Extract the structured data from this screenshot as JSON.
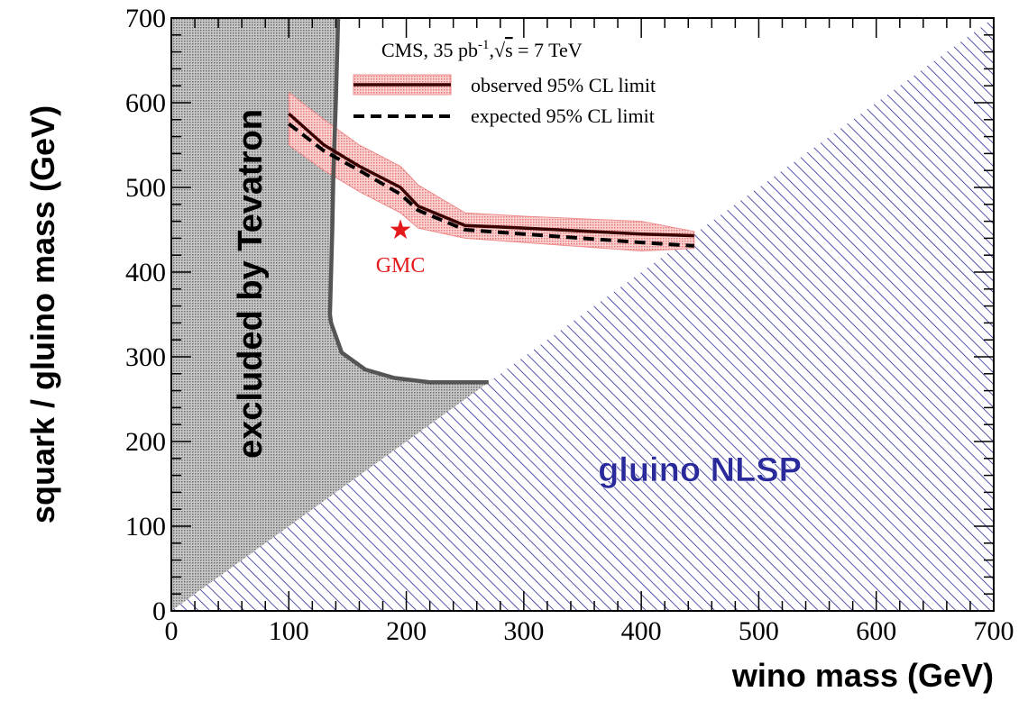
{
  "chart_data": {
    "type": "line",
    "title": "",
    "xlabel": "wino mass (GeV)",
    "ylabel": "squark / gluino mass (GeV)",
    "xlim": [
      0,
      700
    ],
    "ylim": [
      0,
      700
    ],
    "x_ticks": [
      0,
      100,
      200,
      300,
      400,
      500,
      600,
      700
    ],
    "y_ticks": [
      0,
      100,
      200,
      300,
      400,
      500,
      600,
      700
    ],
    "grid": false,
    "legend_placement": "top-right",
    "legend_header": {
      "pre": "CMS, 35 pb",
      "sup": "-1",
      "mid": ",",
      "sqrt": "s",
      "post": " = 7 TeV"
    },
    "series": [
      {
        "name": "observed 95% CL limit",
        "color": "#3a0000",
        "x": [
          100,
          130,
          160,
          195,
          210,
          250,
          300,
          400,
          445
        ],
        "y": [
          587,
          550,
          525,
          500,
          478,
          455,
          452,
          445,
          443
        ]
      },
      {
        "name": "expected 95% CL limit",
        "color": "#000000",
        "x": [
          100,
          130,
          160,
          195,
          210,
          250,
          300,
          400,
          445
        ],
        "y": [
          575,
          543,
          520,
          492,
          473,
          450,
          445,
          435,
          431
        ]
      }
    ],
    "observed_band": {
      "color": "#f08a8a",
      "x": [
        100,
        130,
        160,
        195,
        210,
        250,
        300,
        400,
        445
      ],
      "y_low": [
        550,
        520,
        495,
        470,
        452,
        440,
        435,
        425,
        428
      ],
      "y_high": [
        612,
        580,
        550,
        525,
        503,
        470,
        466,
        460,
        448
      ]
    },
    "tevatron_boundary": {
      "color": "#555555",
      "x": [
        142,
        140,
        138,
        137,
        136,
        135,
        136,
        145,
        165,
        190,
        220,
        250,
        270
      ],
      "y": [
        700,
        600,
        520,
        450,
        400,
        350,
        340,
        305,
        285,
        275,
        270,
        270,
        270
      ]
    },
    "regions": [
      {
        "label": "excluded by Tevatron",
        "color": "#7a7a7a"
      },
      {
        "label": "gluino NLSP",
        "color": "#2a2a9a"
      }
    ],
    "points": [
      {
        "label": "GMC",
        "x": 195,
        "y": 450,
        "color": "#e41a1c"
      }
    ]
  }
}
